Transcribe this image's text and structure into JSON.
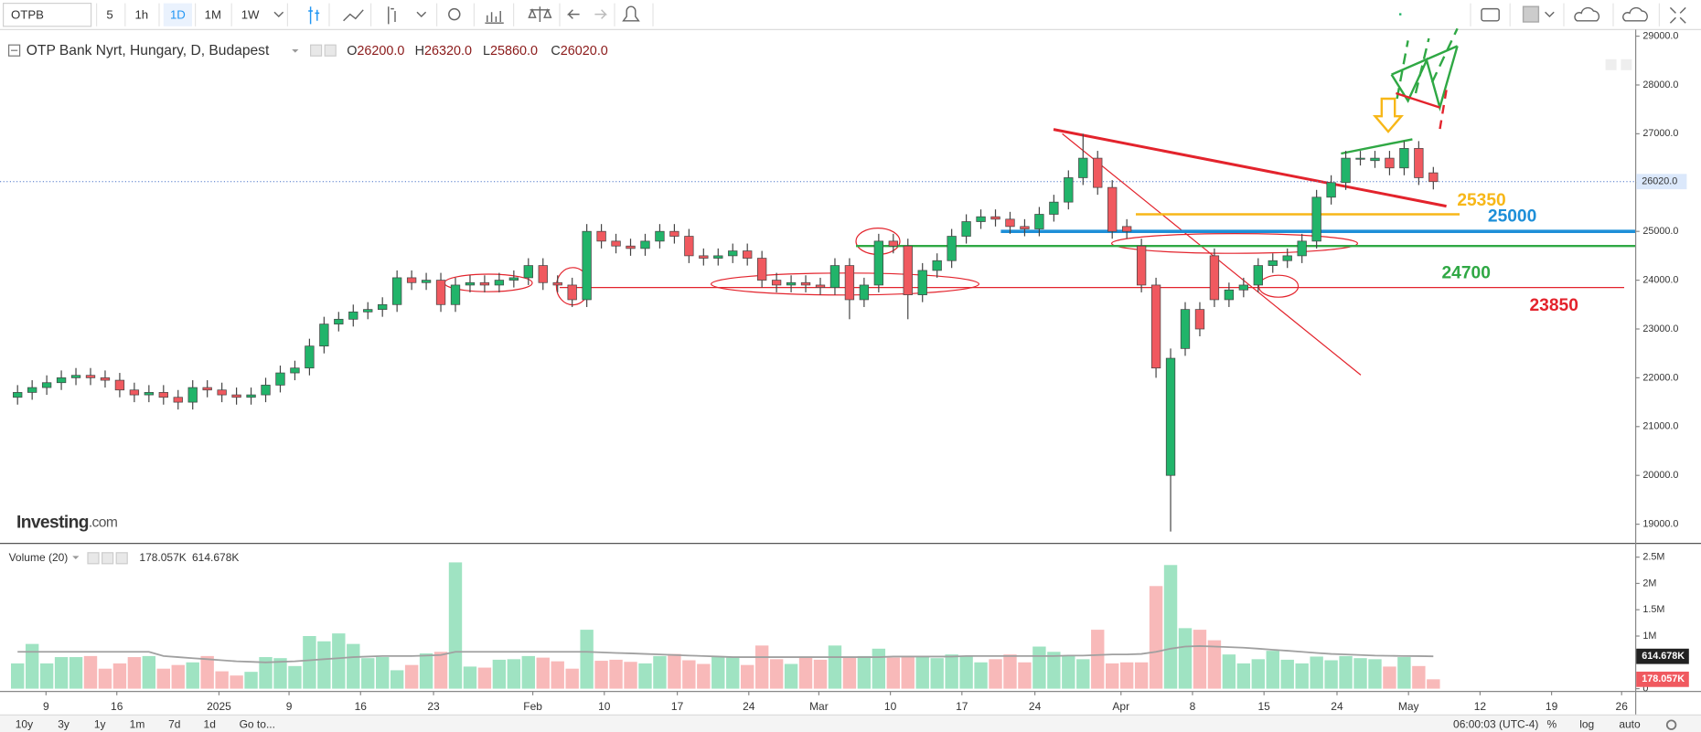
{
  "toolbar": {
    "symbol": "OTPB",
    "intervals": [
      "5",
      "1h",
      "1D",
      "1M",
      "1W"
    ],
    "active_interval": 2
  },
  "logo": [
    "Investing",
    ".com"
  ],
  "footer": {
    "ranges": [
      "10y",
      "3y",
      "1y",
      "1m",
      "7d",
      "1d"
    ],
    "goto": "Go to...",
    "time": "06:00:03 (UTC-4)",
    "options": [
      "%",
      "log",
      "auto"
    ]
  },
  "chart_data": [
    {
      "type": "candlestick",
      "title": "OTP Bank Nyrt, Hungary, D, Budapest",
      "ohlc_legend": [
        {
          "key": "O",
          "value": 26200,
          "label": "26200.0"
        },
        {
          "key": "H",
          "value": 26320,
          "label": "26320.0"
        },
        {
          "key": "L",
          "value": 25860,
          "label": "25860.0"
        },
        {
          "key": "C",
          "value": 26020,
          "label": "26020.0"
        }
      ],
      "last_price": {
        "value": 26020,
        "label": "26020.0"
      },
      "up_color": "#21b46a",
      "down_color": "#f0595f",
      "ylim": [
        18663,
        29112
      ],
      "yticks": [
        {
          "value": 19000,
          "label": "19000.0"
        },
        {
          "value": 20000,
          "label": "20000.0"
        },
        {
          "value": 21000,
          "label": "21000.0"
        },
        {
          "value": 22000,
          "label": "22000.0"
        },
        {
          "value": 23000,
          "label": "23000.0"
        },
        {
          "value": 24000,
          "label": "24000.0"
        },
        {
          "value": 25000,
          "label": "25000.0"
        },
        {
          "value": 26000,
          "label": "26000.0"
        },
        {
          "value": 27000,
          "label": "27000.0"
        },
        {
          "value": 28000,
          "label": "28000.0"
        },
        {
          "value": 29000,
          "label": "29000.0"
        }
      ],
      "open": [
        21600,
        21700,
        21800,
        21900,
        22000,
        22050,
        22000,
        21950,
        21750,
        21650,
        21700,
        21600,
        21500,
        21800,
        21750,
        21650,
        21600,
        21650,
        21850,
        22100,
        22200,
        22650,
        23100,
        23200,
        23350,
        23400,
        23500,
        24050,
        23950,
        24000,
        23500,
        23900,
        23950,
        23900,
        24000,
        24050,
        24300,
        23950,
        23900,
        23600,
        25000,
        24800,
        24700,
        24650,
        24800,
        25000,
        24900,
        24500,
        24450,
        24500,
        24600,
        24450,
        24000,
        23900,
        23950,
        23900,
        23850,
        24300,
        23600,
        23900,
        24800,
        24700,
        23700,
        24200,
        24400,
        24900,
        25200,
        25300,
        25250,
        25100,
        25050,
        25350,
        25600,
        26100,
        26500,
        25900,
        25100,
        24700,
        23900,
        20000,
        22600,
        23400,
        24500,
        23600,
        23800,
        23900,
        24300,
        24400,
        24500,
        24800,
        25700,
        26000,
        26500,
        26450,
        26500,
        26300,
        26700,
        26200
      ],
      "high": [
        21850,
        21950,
        22050,
        22150,
        22200,
        22200,
        22150,
        22100,
        21900,
        21850,
        21850,
        21750,
        21950,
        21950,
        21900,
        21800,
        21800,
        22000,
        22250,
        22350,
        22800,
        23250,
        23350,
        23500,
        23550,
        23650,
        24200,
        24200,
        24150,
        24150,
        24050,
        24100,
        24100,
        24150,
        24200,
        24450,
        24450,
        24100,
        24050,
        25150,
        25150,
        24950,
        24850,
        24950,
        25150,
        25150,
        25050,
        24650,
        24650,
        24750,
        24750,
        24600,
        24150,
        24100,
        24100,
        24050,
        24450,
        24450,
        24050,
        24950,
        24950,
        24850,
        24350,
        24550,
        25050,
        25350,
        25450,
        25450,
        25400,
        25250,
        25500,
        25750,
        26250,
        27000,
        26650,
        26050,
        25250,
        24850,
        24050,
        22600,
        23550,
        23550,
        24650,
        23950,
        24050,
        24450,
        24550,
        24650,
        24950,
        25850,
        26150,
        26650,
        26650,
        26650,
        26650,
        26850,
        26850,
        26320
      ],
      "low": [
        21450,
        21550,
        21650,
        21750,
        21850,
        21850,
        21800,
        21600,
        21500,
        21500,
        21450,
        21350,
        21350,
        21600,
        21500,
        21450,
        21450,
        21500,
        21700,
        21950,
        22050,
        22500,
        22950,
        23050,
        23200,
        23250,
        23350,
        23800,
        23800,
        23350,
        23350,
        23750,
        23750,
        23750,
        23850,
        23900,
        23800,
        23750,
        23450,
        23450,
        24650,
        24550,
        24500,
        24500,
        24650,
        24750,
        24350,
        24300,
        24300,
        24350,
        24300,
        23850,
        23750,
        23750,
        23750,
        23700,
        23700,
        23200,
        23450,
        23750,
        24550,
        23200,
        23550,
        24050,
        24250,
        24750,
        25050,
        25100,
        24950,
        24900,
        24900,
        25200,
        25450,
        25950,
        25750,
        24850,
        24850,
        23750,
        22000,
        18850,
        22450,
        22850,
        23450,
        23450,
        23650,
        23750,
        24150,
        24250,
        24350,
        24650,
        25550,
        25850,
        26350,
        26300,
        26150,
        26150,
        25950,
        25860
      ],
      "close": [
        21700,
        21800,
        21900,
        22000,
        22050,
        22000,
        21950,
        21750,
        21650,
        21700,
        21600,
        21500,
        21800,
        21750,
        21650,
        21600,
        21650,
        21850,
        22100,
        22200,
        22650,
        23100,
        23200,
        23350,
        23400,
        23500,
        24050,
        23950,
        24000,
        23500,
        23900,
        23950,
        23900,
        24000,
        24050,
        24300,
        23950,
        23900,
        23600,
        25000,
        24800,
        24700,
        24650,
        24800,
        25000,
        24900,
        24500,
        24450,
        24500,
        24600,
        24450,
        24000,
        23900,
        23950,
        23900,
        23850,
        24300,
        23600,
        23900,
        24800,
        24700,
        23700,
        24200,
        24400,
        24900,
        25200,
        25300,
        25250,
        25100,
        25050,
        25350,
        25600,
        26100,
        26500,
        25900,
        25000,
        25000,
        23900,
        22200,
        22400,
        23400,
        23000,
        23600,
        23800,
        23900,
        24300,
        24400,
        24500,
        24800,
        25700,
        26000,
        26500,
        26500,
        26500,
        26300,
        26700,
        26100,
        26020
      ],
      "levels": [
        {
          "value": 25350,
          "color": "#f7b718"
        },
        {
          "value": 25000,
          "color": "#1e8fd8"
        },
        {
          "value": 24700,
          "color": "#2fa844"
        },
        {
          "value": 23850,
          "color": "#e3232c"
        }
      ]
    },
    {
      "type": "bar",
      "title": "Volume (20)",
      "up_color": "#9fe3c2",
      "down_color": "#f8b9b9",
      "ma_color": "#a0a0a0",
      "last": {
        "value": 178057,
        "label": "178.057K"
      },
      "ma_last": {
        "value": 614678,
        "label": "614.678K"
      },
      "ylim": [
        -42000,
        2730000
      ],
      "yticks": [
        0,
        {
          "value": 1000000,
          "label": "1M"
        },
        {
          "value": 1500000,
          "label": "1.5M"
        },
        {
          "value": 2000000,
          "label": "2M"
        },
        {
          "value": 2500000,
          "label": "2.5M"
        }
      ],
      "xticks": [
        {
          "value": 1.95,
          "label": "9"
        },
        {
          "value": 6.8,
          "label": "16"
        },
        {
          "value": 13.8,
          "label": "2025"
        },
        {
          "value": 18.6,
          "label": "9"
        },
        {
          "value": 23.5,
          "label": "16"
        },
        {
          "value": 28.5,
          "label": "23"
        },
        {
          "value": 35.3,
          "label": "Feb"
        },
        {
          "value": 40.2,
          "label": "10"
        },
        {
          "value": 45.2,
          "label": "17"
        },
        {
          "value": 50.1,
          "label": "24"
        },
        {
          "value": 54.9,
          "label": "Mar"
        },
        {
          "value": 59.8,
          "label": "10"
        },
        {
          "value": 64.7,
          "label": "17"
        },
        {
          "value": 69.7,
          "label": "24"
        },
        {
          "value": 75.6,
          "label": "Apr"
        },
        {
          "value": 80.5,
          "label": "8"
        },
        {
          "value": 85.4,
          "label": "15"
        },
        {
          "value": 90.4,
          "label": "24"
        },
        {
          "value": 95.3,
          "label": "May"
        },
        {
          "value": 100.2,
          "label": "12"
        },
        {
          "value": 105.1,
          "label": "19"
        },
        {
          "value": 109.9,
          "label": "26"
        }
      ],
      "values": [
        480000,
        850000,
        480000,
        600000,
        600000,
        620000,
        380000,
        480000,
        600000,
        620000,
        380000,
        450000,
        500000,
        620000,
        330000,
        250000,
        320000,
        600000,
        580000,
        430000,
        1000000,
        900000,
        1050000,
        850000,
        580000,
        600000,
        350000,
        450000,
        670000,
        700000,
        2400000,
        420000,
        400000,
        550000,
        560000,
        620000,
        590000,
        520000,
        380000,
        1120000,
        530000,
        550000,
        510000,
        480000,
        620000,
        660000,
        540000,
        470000,
        600000,
        610000,
        450000,
        820000,
        560000,
        470000,
        610000,
        550000,
        820000,
        600000,
        620000,
        760000,
        590000,
        600000,
        620000,
        580000,
        650000,
        620000,
        500000,
        560000,
        650000,
        500000,
        800000,
        700000,
        620000,
        560000,
        1120000,
        480000,
        500000,
        500000,
        1950000,
        2350000,
        1150000,
        1120000,
        920000,
        650000,
        480000,
        560000,
        720000,
        550000,
        480000,
        610000,
        540000,
        620000,
        580000,
        560000,
        420000,
        600000,
        430000,
        178057
      ],
      "ma": [
        700000,
        700000,
        700000,
        700000,
        700000,
        700000,
        700000,
        700000,
        700000,
        700000,
        620000,
        600000,
        580000,
        560000,
        540000,
        520000,
        510000,
        500000,
        510000,
        520000,
        540000,
        560000,
        580000,
        600000,
        610000,
        620000,
        620000,
        620000,
        630000,
        640000,
        700000,
        700000,
        700000,
        700000,
        700000,
        700000,
        700000,
        700000,
        700000,
        700000,
        690000,
        680000,
        670000,
        660000,
        650000,
        640000,
        630000,
        620000,
        610000,
        600000,
        600000,
        600000,
        600000,
        600000,
        600000,
        600000,
        600000,
        600000,
        600000,
        600000,
        610000,
        610000,
        610000,
        610000,
        610000,
        620000,
        620000,
        620000,
        620000,
        620000,
        620000,
        620000,
        630000,
        630000,
        640000,
        650000,
        650000,
        660000,
        700000,
        760000,
        800000,
        810000,
        800000,
        790000,
        780000,
        760000,
        740000,
        720000,
        700000,
        680000,
        660000,
        650000,
        640000,
        630000,
        625000,
        620000,
        618000,
        614678
      ]
    }
  ]
}
